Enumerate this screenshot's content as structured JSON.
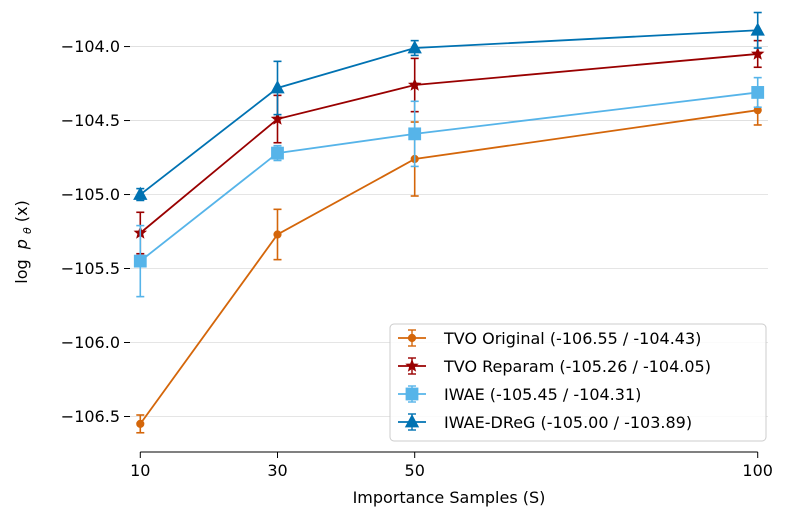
{
  "chart_data": {
    "type": "line",
    "title": "",
    "xlabel": "Importance Samples (S)",
    "ylabel_text": "log",
    "ylabel_math": "p",
    "ylabel_sub": "θ",
    "ylabel_arg": "(x)",
    "x": [
      10,
      30,
      50,
      100
    ],
    "xlim": [
      8.5,
      101.5
    ],
    "ylim": [
      -106.74,
      -103.78
    ],
    "xticks": [
      10,
      30,
      50,
      100
    ],
    "xtick_labels": [
      "10",
      "30",
      "50",
      "100"
    ],
    "yticks": [
      -106.5,
      -106.0,
      -105.5,
      -105.0,
      -104.5,
      -104.0
    ],
    "ytick_labels": [
      "−106.5",
      "−106.0",
      "−105.5",
      "−105.0",
      "−104.5",
      "−104.0"
    ],
    "grid": "horizontal",
    "legend_position": "lower-right",
    "series": [
      {
        "name": "TVO Original (-106.55 / -104.43)",
        "color": "#d4660a",
        "marker": "circle",
        "values": [
          -106.55,
          -105.27,
          -104.76,
          -104.43
        ],
        "err": [
          0.06,
          0.17,
          0.25,
          0.1
        ]
      },
      {
        "name": "TVO Reparam (-105.26 / -104.05)",
        "color": "#990000",
        "marker": "star",
        "values": [
          -105.26,
          -104.49,
          -104.26,
          -104.05
        ],
        "err": [
          0.14,
          0.16,
          0.18,
          0.09
        ]
      },
      {
        "name": "IWAE (-105.45 / -104.31)",
        "color": "#56b4e9",
        "marker": "square",
        "values": [
          -105.45,
          -104.72,
          -104.59,
          -104.31
        ],
        "err": [
          0.24,
          0.05,
          0.22,
          0.1
        ]
      },
      {
        "name": "IWAE-DReG (-105.00 / -103.89)",
        "color": "#0072b2",
        "marker": "triangle",
        "values": [
          -105.0,
          -104.28,
          -104.01,
          -103.89
        ],
        "err": [
          0.04,
          0.18,
          0.05,
          0.12
        ]
      }
    ]
  }
}
